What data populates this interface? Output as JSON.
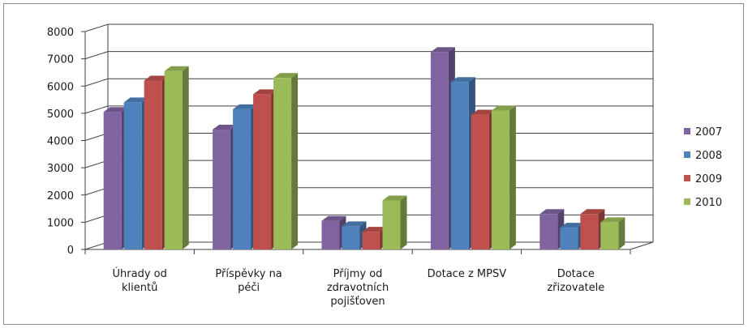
{
  "chart_data": {
    "type": "bar",
    "title": "",
    "xlabel": "",
    "ylabel": "",
    "ylim": [
      0,
      8000
    ],
    "yticks": [
      0,
      1000,
      2000,
      3000,
      4000,
      5000,
      6000,
      7000,
      8000
    ],
    "grid": true,
    "legend_position": "right",
    "three_d": true,
    "categories": [
      [
        "Úhrady od",
        "klientů"
      ],
      [
        "Příspěvky na",
        "péči"
      ],
      [
        "Příjmy od",
        "zdravotních",
        "pojišťoven"
      ],
      [
        "Dotace z MPSV"
      ],
      [
        "Dotace",
        "zřizovatele"
      ]
    ],
    "series": [
      {
        "name": "2007",
        "color": "#8064a2",
        "values": [
          5050,
          4400,
          1050,
          7250,
          1300
        ]
      },
      {
        "name": "2008",
        "color": "#4f81bd",
        "values": [
          5400,
          5150,
          850,
          6150,
          800
        ]
      },
      {
        "name": "2009",
        "color": "#c0504d",
        "values": [
          6200,
          5700,
          650,
          4950,
          1300
        ]
      },
      {
        "name": "2010",
        "color": "#9bbb59",
        "values": [
          6550,
          6300,
          1800,
          5100,
          1000
        ]
      }
    ]
  }
}
